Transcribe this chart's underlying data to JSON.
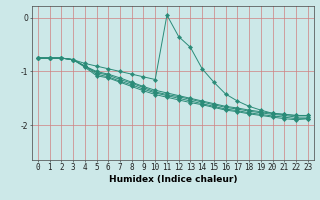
{
  "xlabel": "Humidex (Indice chaleur)",
  "x_values": [
    0,
    1,
    2,
    3,
    4,
    5,
    6,
    7,
    8,
    9,
    10,
    11,
    12,
    13,
    14,
    15,
    16,
    17,
    18,
    19,
    20,
    21,
    22,
    23
  ],
  "series": [
    [
      -0.75,
      -0.75,
      -0.75,
      -0.78,
      -0.85,
      -0.9,
      -0.95,
      -1.0,
      -1.05,
      -1.1,
      -1.15,
      0.05,
      -0.35,
      -0.55,
      -0.95,
      -1.2,
      -1.42,
      -1.55,
      -1.65,
      -1.72,
      -1.78,
      -1.8,
      -1.82,
      -1.82
    ],
    [
      -0.75,
      -0.75,
      -0.75,
      -0.78,
      -0.9,
      -1.0,
      -1.05,
      -1.12,
      -1.2,
      -1.28,
      -1.35,
      -1.4,
      -1.45,
      -1.5,
      -1.55,
      -1.6,
      -1.65,
      -1.68,
      -1.72,
      -1.75,
      -1.78,
      -1.8,
      -1.82,
      -1.82
    ],
    [
      -0.75,
      -0.75,
      -0.75,
      -0.78,
      -0.9,
      -1.02,
      -1.07,
      -1.15,
      -1.22,
      -1.3,
      -1.38,
      -1.43,
      -1.47,
      -1.52,
      -1.57,
      -1.62,
      -1.67,
      -1.7,
      -1.74,
      -1.77,
      -1.8,
      -1.82,
      -1.85,
      -1.85
    ],
    [
      -0.75,
      -0.75,
      -0.75,
      -0.78,
      -0.9,
      -1.05,
      -1.1,
      -1.18,
      -1.25,
      -1.33,
      -1.4,
      -1.45,
      -1.5,
      -1.55,
      -1.6,
      -1.65,
      -1.7,
      -1.73,
      -1.77,
      -1.8,
      -1.83,
      -1.85,
      -1.88,
      -1.88
    ],
    [
      -0.75,
      -0.75,
      -0.75,
      -0.78,
      -0.92,
      -1.08,
      -1.12,
      -1.2,
      -1.28,
      -1.36,
      -1.43,
      -1.48,
      -1.53,
      -1.58,
      -1.62,
      -1.67,
      -1.72,
      -1.75,
      -1.79,
      -1.82,
      -1.85,
      -1.88,
      -1.9,
      -1.88
    ]
  ],
  "line_color": "#2a8b78",
  "marker": "D",
  "marker_size": 2.2,
  "line_width": 0.7,
  "bg_color": "#cce8e8",
  "grid_color": "#d08080",
  "yticks": [
    0,
    -1,
    -2
  ],
  "ylim": [
    -2.65,
    0.22
  ],
  "xlim": [
    -0.5,
    23.5
  ],
  "tick_fontsize": 5.5,
  "xlabel_fontsize": 6.5
}
